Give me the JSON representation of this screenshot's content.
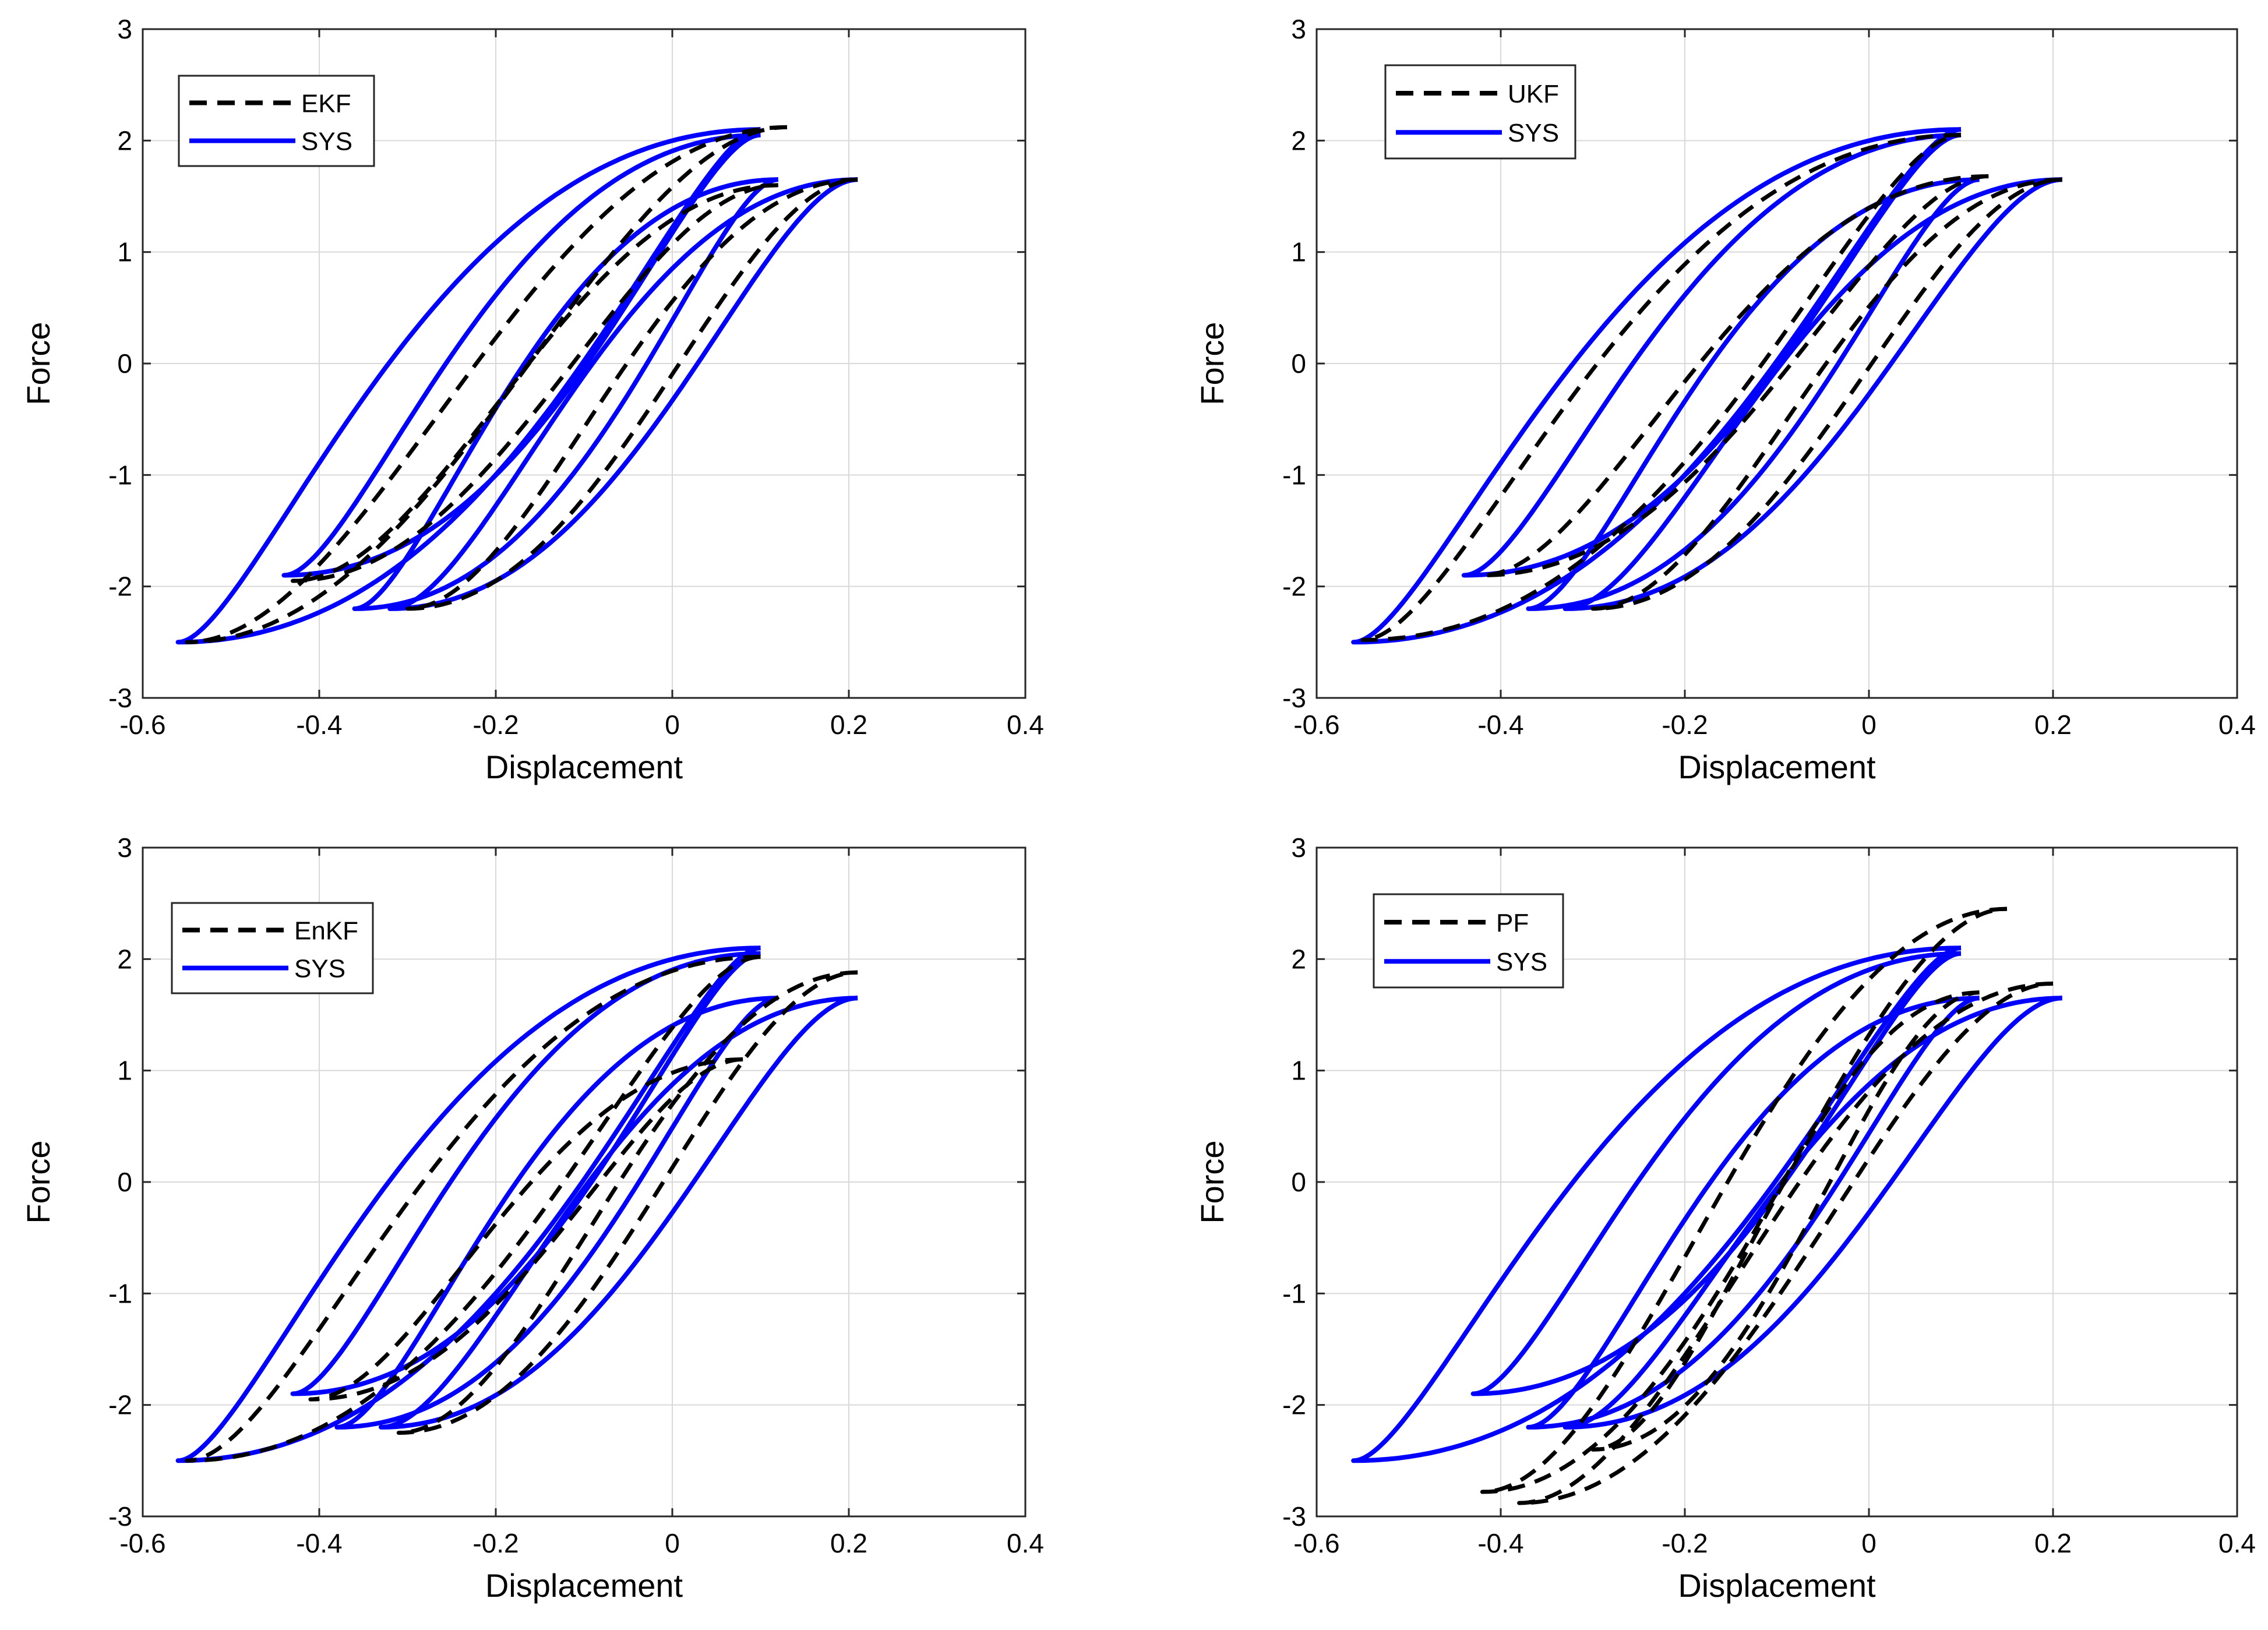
{
  "figure": {
    "background": "#ffffff",
    "sys_color": "#0000ff",
    "est_color": "#000000",
    "grid_color": "#d9d9d9"
  },
  "chart_data": [
    {
      "type": "line",
      "panel": "top-left",
      "xlabel": "Displacement",
      "ylabel": "Force",
      "xlim": [
        -0.6,
        0.4
      ],
      "ylim": [
        -3,
        3
      ],
      "xticks": [
        -0.6,
        -0.4,
        -0.2,
        0,
        0.2,
        0.4
      ],
      "xtick_labels": [
        "-0.6",
        "-0.4",
        "-0.2",
        "0",
        "0.2",
        "0.4"
      ],
      "yticks": [
        -3,
        -2,
        -1,
        0,
        1,
        2,
        3
      ],
      "ytick_labels": [
        "-3",
        "-2",
        "-1",
        "0",
        "1",
        "2",
        "3"
      ],
      "grid": true,
      "legend": {
        "location": "top-left",
        "entries": [
          "EKF",
          "SYS"
        ]
      },
      "series": [
        {
          "name": "EKF",
          "style": "dashed",
          "loops": [
            {
              "xmin": -0.55,
              "ymin": -2.5,
              "xmax": 0.13,
              "ymax": 2.12,
              "width": 0.06
            },
            {
              "xmin": -0.43,
              "ymin": -1.95,
              "xmax": 0.12,
              "ymax": 1.6,
              "width": 0.05
            },
            {
              "xmin": -0.3,
              "ymin": -2.2,
              "xmax": 0.21,
              "ymax": 1.65,
              "width": 0.06
            }
          ]
        },
        {
          "name": "SYS",
          "style": "solid",
          "loops": [
            {
              "xmin": -0.56,
              "ymin": -2.5,
              "xmax": 0.1,
              "ymax": 2.1,
              "width": 0.22
            },
            {
              "xmin": -0.44,
              "ymin": -1.9,
              "xmax": 0.1,
              "ymax": 2.05,
              "width": 0.16
            },
            {
              "xmin": -0.36,
              "ymin": -2.2,
              "xmax": 0.12,
              "ymax": 1.65,
              "width": 0.14
            },
            {
              "xmin": -0.32,
              "ymin": -2.2,
              "xmax": 0.21,
              "ymax": 1.65,
              "width": 0.12
            }
          ]
        }
      ]
    },
    {
      "type": "line",
      "panel": "top-right",
      "xlabel": "Displacement",
      "ylabel": "Force",
      "xlim": [
        -0.6,
        0.4
      ],
      "ylim": [
        -3,
        3
      ],
      "xticks": [
        -0.6,
        -0.4,
        -0.2,
        0,
        0.2,
        0.4
      ],
      "xtick_labels": [
        "-0.6",
        "-0.4",
        "-0.2",
        "0",
        "0.2",
        "0.4"
      ],
      "yticks": [
        -3,
        -2,
        -1,
        0,
        1,
        2,
        3
      ],
      "ytick_labels": [
        "-3",
        "-2",
        "-1",
        "0",
        "1",
        "2",
        "3"
      ],
      "grid": true,
      "legend": {
        "location": "top-left",
        "entries": [
          "UKF",
          "SYS"
        ]
      },
      "series": [
        {
          "name": "UKF",
          "style": "dashed",
          "loops": [
            {
              "xmin": -0.55,
              "ymin": -2.48,
              "xmax": 0.1,
              "ymax": 2.05,
              "width": 0.18
            },
            {
              "xmin": -0.42,
              "ymin": -1.9,
              "xmax": 0.13,
              "ymax": 1.68,
              "width": 0.1
            },
            {
              "xmin": -0.3,
              "ymin": -2.2,
              "xmax": 0.21,
              "ymax": 1.65,
              "width": 0.05
            }
          ]
        },
        {
          "name": "SYS",
          "style": "solid",
          "loops": [
            {
              "xmin": -0.56,
              "ymin": -2.5,
              "xmax": 0.1,
              "ymax": 2.1,
              "width": 0.22
            },
            {
              "xmin": -0.44,
              "ymin": -1.9,
              "xmax": 0.1,
              "ymax": 2.05,
              "width": 0.16
            },
            {
              "xmin": -0.37,
              "ymin": -2.2,
              "xmax": 0.12,
              "ymax": 1.65,
              "width": 0.14
            },
            {
              "xmin": -0.33,
              "ymin": -2.2,
              "xmax": 0.21,
              "ymax": 1.65,
              "width": 0.12
            }
          ]
        }
      ]
    },
    {
      "type": "line",
      "panel": "bottom-left",
      "xlabel": "Displacement",
      "ylabel": "Force",
      "xlim": [
        -0.6,
        0.4
      ],
      "ylim": [
        -3,
        3
      ],
      "xticks": [
        -0.6,
        -0.4,
        -0.2,
        0,
        0.2,
        0.4
      ],
      "xtick_labels": [
        "-0.6",
        "-0.4",
        "-0.2",
        "0",
        "0.2",
        "0.4"
      ],
      "yticks": [
        -3,
        -2,
        -1,
        0,
        1,
        2,
        3
      ],
      "ytick_labels": [
        "-3",
        "-2",
        "-1",
        "0",
        "1",
        "2",
        "3"
      ],
      "grid": true,
      "legend": {
        "location": "top-left",
        "entries": [
          "EnKF",
          "SYS"
        ]
      },
      "series": [
        {
          "name": "EnKF",
          "style": "dashed",
          "loops": [
            {
              "xmin": -0.55,
              "ymin": -2.5,
              "xmax": 0.1,
              "ymax": 2.02,
              "width": 0.16
            },
            {
              "xmin": -0.41,
              "ymin": -1.95,
              "xmax": 0.08,
              "ymax": 1.1,
              "width": 0.08
            },
            {
              "xmin": -0.31,
              "ymin": -2.25,
              "xmax": 0.21,
              "ymax": 1.88,
              "width": 0.05
            }
          ]
        },
        {
          "name": "SYS",
          "style": "solid",
          "loops": [
            {
              "xmin": -0.56,
              "ymin": -2.5,
              "xmax": 0.1,
              "ymax": 2.1,
              "width": 0.22
            },
            {
              "xmin": -0.43,
              "ymin": -1.9,
              "xmax": 0.1,
              "ymax": 2.05,
              "width": 0.16
            },
            {
              "xmin": -0.38,
              "ymin": -2.2,
              "xmax": 0.12,
              "ymax": 1.65,
              "width": 0.14
            },
            {
              "xmin": -0.33,
              "ymin": -2.2,
              "xmax": 0.21,
              "ymax": 1.65,
              "width": 0.12
            }
          ]
        }
      ]
    },
    {
      "type": "line",
      "panel": "bottom-right",
      "xlabel": "Displacement",
      "ylabel": "Force",
      "xlim": [
        -0.6,
        0.4
      ],
      "ylim": [
        -3,
        3
      ],
      "xticks": [
        -0.6,
        -0.4,
        -0.2,
        0,
        0.2,
        0.4
      ],
      "xtick_labels": [
        "-0.6",
        "-0.4",
        "-0.2",
        "0",
        "0.2",
        "0.4"
      ],
      "yticks": [
        -3,
        -2,
        -1,
        0,
        1,
        2,
        3
      ],
      "ytick_labels": [
        "-3",
        "-2",
        "-1",
        "0",
        "1",
        "2",
        "3"
      ],
      "grid": true,
      "legend": {
        "location": "top-left",
        "entries": [
          "PF",
          "SYS"
        ]
      },
      "series": [
        {
          "name": "PF",
          "style": "dashed",
          "loops": [
            {
              "xmin": -0.42,
              "ymin": -2.78,
              "xmax": 0.15,
              "ymax": 2.45,
              "width": 0.06
            },
            {
              "xmin": -0.38,
              "ymin": -2.88,
              "xmax": 0.2,
              "ymax": 1.78,
              "width": 0.06
            },
            {
              "xmin": -0.3,
              "ymin": -2.4,
              "xmax": 0.12,
              "ymax": 1.7,
              "width": 0.05
            }
          ]
        },
        {
          "name": "SYS",
          "style": "solid",
          "loops": [
            {
              "xmin": -0.56,
              "ymin": -2.5,
              "xmax": 0.1,
              "ymax": 2.1,
              "width": 0.22
            },
            {
              "xmin": -0.43,
              "ymin": -1.9,
              "xmax": 0.1,
              "ymax": 2.05,
              "width": 0.16
            },
            {
              "xmin": -0.37,
              "ymin": -2.2,
              "xmax": 0.12,
              "ymax": 1.65,
              "width": 0.14
            },
            {
              "xmin": -0.33,
              "ymin": -2.2,
              "xmax": 0.21,
              "ymax": 1.65,
              "width": 0.12
            }
          ]
        }
      ]
    }
  ]
}
